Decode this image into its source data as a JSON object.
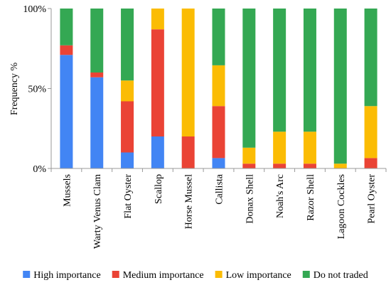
{
  "chart_data": {
    "type": "bar",
    "stacked": true,
    "percent_stacked": true,
    "title": "",
    "xlabel": "",
    "ylabel": "Frequency %",
    "ylim": [
      0,
      100
    ],
    "yticks": [
      {
        "value": 0,
        "label": "0%"
      },
      {
        "value": 50,
        "label": "50%"
      },
      {
        "value": 100,
        "label": "100%"
      }
    ],
    "grid": false,
    "legend_position": "bottom",
    "categories": [
      "Mussels",
      "Warty Venus Clam",
      "Flat Oyster",
      "Scallop",
      "Horse Mussel",
      "Callista",
      "Donax Shell",
      "Noah's Arc",
      "Razor Shell",
      "Lagoon Cockles",
      "Pearl Oyster"
    ],
    "series": [
      {
        "name": "High importance",
        "color": "#4285f4",
        "values": [
          71,
          57,
          10,
          20,
          0,
          6.5,
          0,
          0,
          0,
          0,
          0
        ]
      },
      {
        "name": "Medium importance",
        "color": "#ea4335",
        "values": [
          6,
          3,
          32,
          67,
          20,
          32.5,
          3,
          3,
          3,
          0,
          6.5
        ]
      },
      {
        "name": "Low importance",
        "color": "#fbbc04",
        "values": [
          0,
          0,
          13,
          13,
          80,
          25.5,
          10,
          20,
          20,
          3,
          32.5
        ]
      },
      {
        "name": "Do not traded",
        "color": "#34a853",
        "values": [
          23,
          40,
          45,
          0,
          0,
          35.5,
          87,
          77,
          77,
          97,
          61
        ]
      }
    ]
  }
}
